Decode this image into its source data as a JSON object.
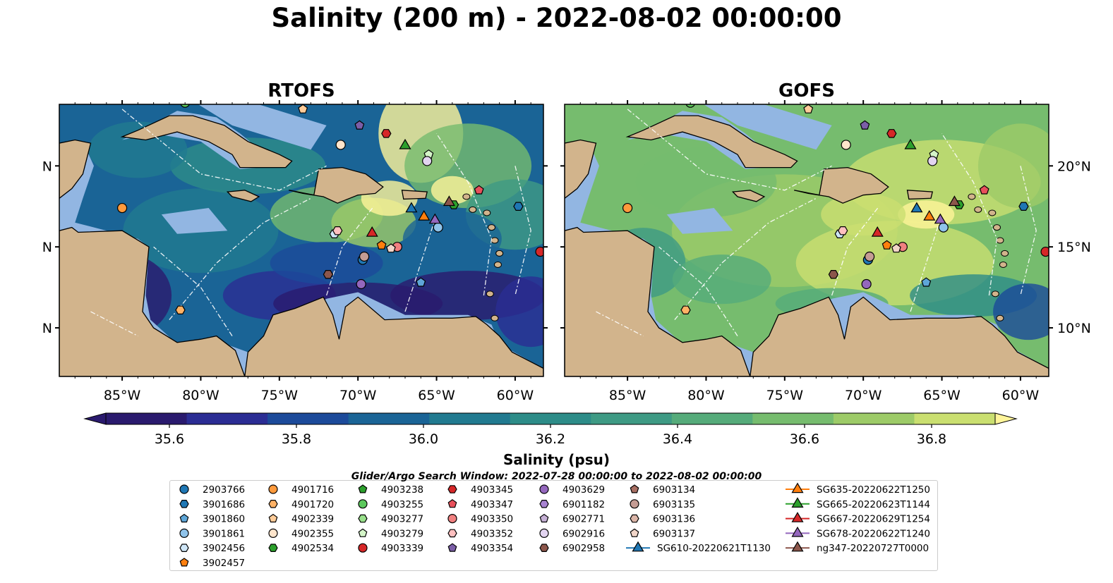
{
  "title": "Salinity (200 m) - 2022-08-02 00:00:00",
  "panels": [
    {
      "title": "RTOFS",
      "scheme": "rtofs"
    },
    {
      "title": "GOFS",
      "scheme": "gofs"
    }
  ],
  "axes": {
    "lon_ticks": [
      "85°W",
      "80°W",
      "75°W",
      "70°W",
      "65°W",
      "60°W"
    ],
    "lon_values": [
      -85,
      -80,
      -75,
      -70,
      -65,
      -60
    ],
    "lat_ticks": [
      "20°N",
      "15°N",
      "10°N"
    ],
    "lat_values": [
      20,
      15,
      10
    ],
    "extent": {
      "lon_min": -89,
      "lon_max": -58.2,
      "lat_min": 7,
      "lat_max": 23.8
    }
  },
  "colorbar": {
    "label": "Salinity (psu)",
    "min": 35.5,
    "max": 36.9,
    "tick_labels": [
      "35.6",
      "35.8",
      "36.0",
      "36.2",
      "36.4",
      "36.6",
      "36.8"
    ],
    "tick_values": [
      35.6,
      35.8,
      36.0,
      36.2,
      36.4,
      36.6,
      36.8
    ],
    "colors": [
      "#2a1a6e",
      "#2b2d94",
      "#1c4a9a",
      "#1a6496",
      "#217a90",
      "#2d8c88",
      "#3e9a84",
      "#55ab7a",
      "#76bc6e",
      "#9dcb68",
      "#cadf70",
      "#fff59a"
    ]
  },
  "legend": {
    "title": "Glider/Argo Search Window: 2022-07-28 00:00:00 to 2022-08-02 00:00:00",
    "entries": [
      {
        "label": "2903766",
        "marker": "circle",
        "color": "#1f77b4",
        "col": 0,
        "row": 0
      },
      {
        "label": "3901686",
        "marker": "hexagon",
        "color": "#1f77b4",
        "col": 0,
        "row": 1
      },
      {
        "label": "3901860",
        "marker": "pentagon",
        "color": "#5ea6d8",
        "col": 0,
        "row": 2
      },
      {
        "label": "3901861",
        "marker": "circle",
        "color": "#8fc3ea",
        "col": 0,
        "row": 3
      },
      {
        "label": "3902456",
        "marker": "hexagon",
        "color": "#cfe6f7",
        "col": 0,
        "row": 4
      },
      {
        "label": "3902457",
        "marker": "pentagon",
        "color": "#ff7f0e",
        "col": 0,
        "row": 5
      },
      {
        "label": "4901716",
        "marker": "circle",
        "color": "#ff9a3c",
        "col": 1,
        "row": 0
      },
      {
        "label": "4901720",
        "marker": "hexagon",
        "color": "#ffb266",
        "col": 1,
        "row": 1
      },
      {
        "label": "4902339",
        "marker": "pentagon",
        "color": "#ffcc99",
        "col": 1,
        "row": 2
      },
      {
        "label": "4902355",
        "marker": "circle",
        "color": "#ffe5cc",
        "col": 1,
        "row": 3
      },
      {
        "label": "4902534",
        "marker": "hexagon",
        "color": "#2ca02c",
        "col": 1,
        "row": 4
      },
      {
        "label": "4903238",
        "marker": "pentagon",
        "color": "#2ca02c",
        "col": 2,
        "row": 0
      },
      {
        "label": "4903255",
        "marker": "circle",
        "color": "#5cc85c",
        "col": 2,
        "row": 1
      },
      {
        "label": "4903277",
        "marker": "hexagon",
        "color": "#98df8a",
        "col": 2,
        "row": 2
      },
      {
        "label": "4903279",
        "marker": "pentagon",
        "color": "#d4f5c8",
        "col": 2,
        "row": 3
      },
      {
        "label": "4903339",
        "marker": "circle",
        "color": "#d62728",
        "col": 2,
        "row": 4
      },
      {
        "label": "4903345",
        "marker": "hexagon",
        "color": "#d62728",
        "col": 3,
        "row": 0
      },
      {
        "label": "4903347",
        "marker": "pentagon",
        "color": "#e8505b",
        "col": 3,
        "row": 1
      },
      {
        "label": "4903350",
        "marker": "circle",
        "color": "#f08080",
        "col": 3,
        "row": 2
      },
      {
        "label": "4903352",
        "marker": "hexagon",
        "color": "#ffc0c0",
        "col": 3,
        "row": 3
      },
      {
        "label": "4903354",
        "marker": "pentagon",
        "color": "#7b5ea7",
        "col": 3,
        "row": 4
      },
      {
        "label": "4903629",
        "marker": "circle",
        "color": "#9467bd",
        "col": 4,
        "row": 0
      },
      {
        "label": "6901182",
        "marker": "hexagon",
        "color": "#a883d1",
        "col": 4,
        "row": 1
      },
      {
        "label": "6902771",
        "marker": "pentagon",
        "color": "#c5b0d5",
        "col": 4,
        "row": 2
      },
      {
        "label": "6902916",
        "marker": "circle",
        "color": "#e2d4f0",
        "col": 4,
        "row": 3
      },
      {
        "label": "6902958",
        "marker": "hexagon",
        "color": "#8c564b",
        "col": 4,
        "row": 4
      },
      {
        "label": "6903134",
        "marker": "pentagon",
        "color": "#a86f63",
        "col": 5,
        "row": 0
      },
      {
        "label": "6903135",
        "marker": "circle",
        "color": "#c49c94",
        "col": 5,
        "row": 1
      },
      {
        "label": "6903136",
        "marker": "hexagon",
        "color": "#dbb5a8",
        "col": 5,
        "row": 2
      },
      {
        "label": "6903137",
        "marker": "pentagon",
        "color": "#f1d5c8",
        "col": 5,
        "row": 3
      },
      {
        "label": "SG610-20220621T1130",
        "marker": "triangle",
        "color": "#1f77b4",
        "col": 5,
        "row": 4,
        "line": true
      },
      {
        "label": "SG635-20220622T1250",
        "marker": "triangle",
        "color": "#ff7f0e",
        "col": 6,
        "row": 0,
        "line": true
      },
      {
        "label": "SG665-20220623T1144",
        "marker": "triangle",
        "color": "#2ca02c",
        "col": 6,
        "row": 1,
        "line": true
      },
      {
        "label": "SG667-20220629T1254",
        "marker": "triangle",
        "color": "#d62728",
        "col": 6,
        "row": 2,
        "line": true
      },
      {
        "label": "SG678-20220622T1240",
        "marker": "triangle",
        "color": "#9467bd",
        "col": 6,
        "row": 3,
        "line": true
      },
      {
        "label": "ng347-20220727T0000",
        "marker": "triangle",
        "color": "#8c564b",
        "col": 6,
        "row": 4,
        "line": true
      }
    ]
  },
  "platform_positions": [
    {
      "id": "2903766",
      "lon": -69.7,
      "lat": 14.2
    },
    {
      "id": "3901686",
      "lon": -59.8,
      "lat": 17.5
    },
    {
      "id": "3901860",
      "lon": -66.0,
      "lat": 12.8
    },
    {
      "id": "3901861",
      "lon": -64.9,
      "lat": 16.2
    },
    {
      "id": "3902456",
      "lon": -71.5,
      "lat": 15.8
    },
    {
      "id": "3902457",
      "lon": -68.5,
      "lat": 15.1
    },
    {
      "id": "4901716",
      "lon": -85.0,
      "lat": 17.4
    },
    {
      "id": "4901720",
      "lon": -81.3,
      "lat": 11.1
    },
    {
      "id": "4902339",
      "lon": -73.5,
      "lat": 23.5
    },
    {
      "id": "4902355",
      "lon": -71.1,
      "lat": 21.3
    },
    {
      "id": "4902534",
      "lon": -63.9,
      "lat": 17.6
    },
    {
      "id": "4903255",
      "lon": -81.0,
      "lat": 23.9
    },
    {
      "id": "4903279",
      "lon": -65.5,
      "lat": 20.7
    },
    {
      "id": "4903339",
      "lon": -58.4,
      "lat": 14.7
    },
    {
      "id": "4903345",
      "lon": -68.2,
      "lat": 22.0
    },
    {
      "id": "4903347",
      "lon": -62.3,
      "lat": 18.5
    },
    {
      "id": "4903350",
      "lon": -67.5,
      "lat": 15.0
    },
    {
      "id": "4903352",
      "lon": -71.3,
      "lat": 16.0
    },
    {
      "id": "4903354",
      "lon": -69.9,
      "lat": 22.5
    },
    {
      "id": "4903629",
      "lon": -69.8,
      "lat": 12.7
    },
    {
      "id": "6902916",
      "lon": -65.6,
      "lat": 20.3
    },
    {
      "id": "6902958",
      "lon": -71.9,
      "lat": 13.3
    },
    {
      "id": "6903135",
      "lon": -69.6,
      "lat": 14.4
    },
    {
      "id": "6903137",
      "lon": -67.9,
      "lat": 14.9
    },
    {
      "id": "SG610-20220621T1130",
      "lon": -66.6,
      "lat": 17.4
    },
    {
      "id": "SG635-20220622T1250",
      "lon": -65.8,
      "lat": 16.9
    },
    {
      "id": "SG665-20220623T1144",
      "lon": -67.0,
      "lat": 21.3
    },
    {
      "id": "SG667-20220629T1254",
      "lon": -69.1,
      "lat": 15.9
    },
    {
      "id": "SG678-20220622T1240",
      "lon": -65.1,
      "lat": 16.7
    },
    {
      "id": "ng347-20220727T0000",
      "lon": -64.2,
      "lat": 17.8
    }
  ],
  "colors": {
    "land": "#d2b48c",
    "shelf": "#92b6e2",
    "river": "#9fb7d6"
  }
}
